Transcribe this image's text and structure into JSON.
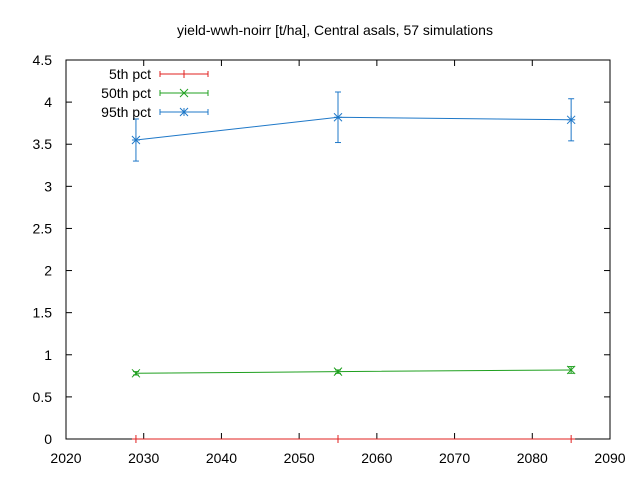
{
  "chart_data": {
    "type": "line",
    "title": "yield-wwh-noirr [t/ha], Central asals, 57 simulations",
    "xlim": [
      2020,
      2090
    ],
    "ylim": [
      0,
      4.5
    ],
    "x_ticks": [
      2020,
      2030,
      2040,
      2050,
      2060,
      2070,
      2080,
      2090
    ],
    "y_ticks": [
      "0",
      "0.5",
      "1",
      "1.5",
      "2",
      "2.5",
      "3",
      "3.5",
      "4",
      "4.5"
    ],
    "x": [
      2029,
      2055,
      2085
    ],
    "legend_position": "top-left",
    "grid": false,
    "series": [
      {
        "name": "5th pct",
        "color": "#e0201f",
        "marker": "plus",
        "values": [
          0.0,
          0.0,
          0.0
        ],
        "err_low": [
          0.0,
          0.0,
          0.0
        ],
        "err_high": [
          0.0,
          0.0,
          0.0
        ]
      },
      {
        "name": "50th pct",
        "color": "#20a020",
        "marker": "x",
        "values": [
          0.78,
          0.8,
          0.82
        ],
        "err_low": [
          0.76,
          0.78,
          0.78
        ],
        "err_high": [
          0.8,
          0.82,
          0.86
        ]
      },
      {
        "name": "95th pct",
        "color": "#1f78c8",
        "marker": "star",
        "values": [
          3.55,
          3.82,
          3.79
        ],
        "err_low": [
          3.3,
          3.52,
          3.54
        ],
        "err_high": [
          3.8,
          4.12,
          4.04
        ]
      }
    ]
  }
}
